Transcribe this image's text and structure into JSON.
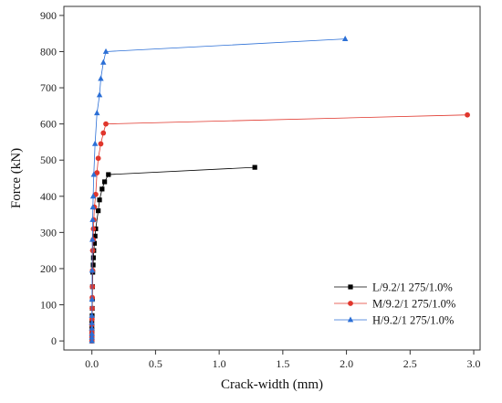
{
  "chart_data": {
    "type": "line",
    "title": "",
    "xlabel": "Crack-width (mm)",
    "ylabel": "Force (kN)",
    "xlim": [
      -0.22,
      3.05
    ],
    "ylim": [
      -25,
      925
    ],
    "xticks": [
      0.0,
      0.5,
      1.0,
      1.5,
      2.0,
      2.5,
      3.0
    ],
    "xtick_labels": [
      "0.0",
      "0.5",
      "1.0",
      "1.5",
      "2.0",
      "2.5",
      "3.0"
    ],
    "yticks": [
      0,
      100,
      200,
      300,
      400,
      500,
      600,
      700,
      800,
      900
    ],
    "ytick_labels": [
      "0",
      "100",
      "200",
      "300",
      "400",
      "500",
      "600",
      "700",
      "800",
      "900"
    ],
    "grid": false,
    "legend_position": "bottom-right",
    "series": [
      {
        "name": "L/9.2/1 275/1.0%",
        "color": "#000000",
        "marker": "square",
        "points": [
          [
            0,
            0
          ],
          [
            0,
            10
          ],
          [
            0,
            20
          ],
          [
            0,
            30
          ],
          [
            0,
            40
          ],
          [
            0,
            55
          ],
          [
            0.002,
            70
          ],
          [
            0.003,
            90
          ],
          [
            0.004,
            115
          ],
          [
            0.005,
            150
          ],
          [
            0.007,
            190
          ],
          [
            0.01,
            210
          ],
          [
            0.012,
            230
          ],
          [
            0.015,
            250
          ],
          [
            0.02,
            270
          ],
          [
            0.025,
            290
          ],
          [
            0.03,
            310
          ],
          [
            0.05,
            360
          ],
          [
            0.06,
            390
          ],
          [
            0.08,
            420
          ],
          [
            0.1,
            440
          ],
          [
            0.13,
            460
          ],
          [
            1.28,
            480
          ]
        ]
      },
      {
        "name": "M/9.2/1 275/1.0%",
        "color": "#e0362c",
        "marker": "circle",
        "points": [
          [
            0,
            0
          ],
          [
            0,
            10
          ],
          [
            0,
            20
          ],
          [
            0,
            30
          ],
          [
            0,
            45
          ],
          [
            0.001,
            60
          ],
          [
            0.002,
            90
          ],
          [
            0.003,
            120
          ],
          [
            0.004,
            150
          ],
          [
            0.005,
            195
          ],
          [
            0.006,
            250
          ],
          [
            0.01,
            280
          ],
          [
            0.012,
            310
          ],
          [
            0.015,
            335
          ],
          [
            0.02,
            370
          ],
          [
            0.03,
            405
          ],
          [
            0.04,
            465
          ],
          [
            0.05,
            505
          ],
          [
            0.07,
            545
          ],
          [
            0.09,
            575
          ],
          [
            0.11,
            600
          ],
          [
            2.95,
            625
          ]
        ]
      },
      {
        "name": "H/9.2/1 275/1.0%",
        "color": "#2b6fd6",
        "marker": "triangle",
        "points": [
          [
            0,
            0
          ],
          [
            0,
            10
          ],
          [
            0,
            20
          ],
          [
            0,
            35
          ],
          [
            0,
            50
          ],
          [
            0,
            70
          ],
          [
            0.001,
            115
          ],
          [
            0.002,
            195
          ],
          [
            0.004,
            280
          ],
          [
            0.006,
            335
          ],
          [
            0.008,
            370
          ],
          [
            0.01,
            400
          ],
          [
            0.015,
            460
          ],
          [
            0.025,
            545
          ],
          [
            0.04,
            630
          ],
          [
            0.06,
            680
          ],
          [
            0.07,
            725
          ],
          [
            0.09,
            770
          ],
          [
            0.11,
            800
          ],
          [
            1.99,
            835
          ]
        ]
      }
    ]
  }
}
